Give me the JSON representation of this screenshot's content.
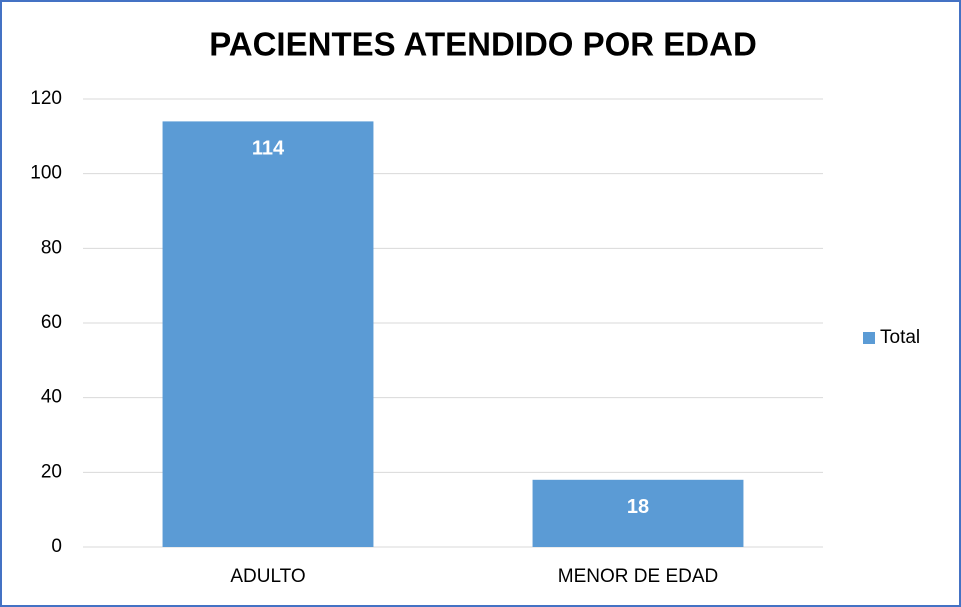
{
  "chart_data": {
    "type": "bar",
    "title": "PACIENTES ATENDIDO POR EDAD",
    "categories": [
      "ADULTO",
      "MENOR DE EDAD"
    ],
    "series": [
      {
        "name": "Total",
        "color": "#5b9bd5",
        "values": [
          114,
          18
        ]
      }
    ],
    "ylim": [
      0,
      120
    ],
    "yticks": [
      0,
      20,
      40,
      60,
      80,
      100,
      120
    ],
    "grid": true,
    "legend": "right"
  }
}
